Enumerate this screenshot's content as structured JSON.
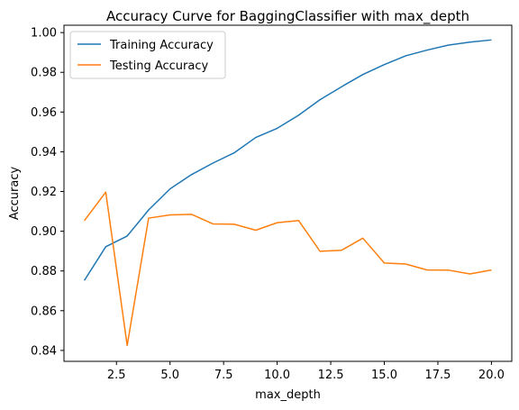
{
  "chart_data": {
    "type": "line",
    "title": "Accuracy Curve for BaggingClassifier with max_depth",
    "xlabel": "max_depth",
    "ylabel": "Accuracy",
    "xlim": [
      0.05,
      20.95
    ],
    "ylim": [
      0.8345,
      1.0037
    ],
    "xticks": [
      2.5,
      5.0,
      7.5,
      10.0,
      12.5,
      15.0,
      17.5,
      20.0
    ],
    "xtick_labels": [
      "2.5",
      "5.0",
      "7.5",
      "10.0",
      "12.5",
      "15.0",
      "17.5",
      "20.0"
    ],
    "yticks": [
      0.84,
      0.86,
      0.88,
      0.9,
      0.92,
      0.94,
      0.96,
      0.98,
      1.0
    ],
    "ytick_labels": [
      "0.84",
      "0.86",
      "0.88",
      "0.90",
      "0.92",
      "0.94",
      "0.96",
      "0.98",
      "1.00"
    ],
    "grid": false,
    "legend_position": "upper-left",
    "x": [
      1,
      2,
      3,
      4,
      5,
      6,
      7,
      8,
      9,
      10,
      11,
      12,
      13,
      14,
      15,
      16,
      17,
      18,
      19,
      20
    ],
    "series": [
      {
        "name": "Training Accuracy",
        "color": "#1f77b4",
        "values": [
          0.8752,
          0.8922,
          0.8976,
          0.9107,
          0.9213,
          0.9285,
          0.9343,
          0.9395,
          0.9472,
          0.9518,
          0.9584,
          0.9662,
          0.9727,
          0.9789,
          0.9839,
          0.9883,
          0.9912,
          0.9937,
          0.9952,
          0.9963
        ]
      },
      {
        "name": "Testing Accuracy",
        "color": "#ff7f0e",
        "values": [
          0.9053,
          0.9197,
          0.8425,
          0.9066,
          0.9082,
          0.9085,
          0.9037,
          0.9035,
          0.9005,
          0.9043,
          0.9054,
          0.8899,
          0.8904,
          0.8965,
          0.884,
          0.8835,
          0.8805,
          0.8804,
          0.8785,
          0.8805
        ]
      }
    ]
  }
}
